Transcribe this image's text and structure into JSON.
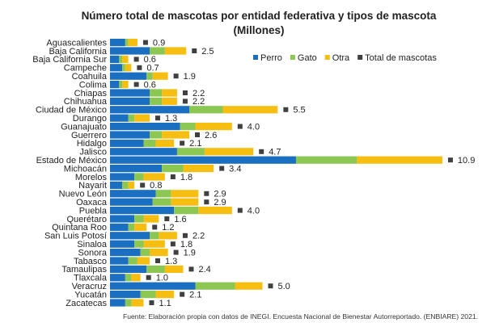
{
  "chart_data": {
    "type": "bar",
    "stacked": true,
    "orientation": "horizontal",
    "title": "Número total de mascotas por entidad federativa y tipos de mascota",
    "subtitle": "(Millones)",
    "source": "Fuente: Elaboración propia con datos de INEGI. Encuesta Nacional de Bienestar Autorreportado. (ENBIARE) 2021.",
    "legend_position": "top-right",
    "grid": false,
    "colors": {
      "Perro": "#1a6fc0",
      "Gato": "#8cc653",
      "Otra": "#f7be12",
      "Total de mascotas": "#404040"
    },
    "categories": [
      "Aguascalientes",
      "Baja California",
      "Baja California Sur",
      "Campeche",
      "Coahuila",
      "Colima",
      "Chiapas",
      "Chihuahua",
      "Ciudad de México",
      "Durango",
      "Guanajuato",
      "Guerrero",
      "Hidalgo",
      "Jalisco",
      "Estado de México",
      "Michoacán",
      "Morelos",
      "Nayarit",
      "Nuevo León",
      "Oaxaca",
      "Puebla",
      "Querétaro",
      "Quintana Roo",
      "San Luis Potosí",
      "Sinaloa",
      "Sonora",
      "Tabasco",
      "Tamaulipas",
      "Tlaxcala",
      "Veracruz",
      "Yucatán",
      "Zacatecas"
    ],
    "series": [
      {
        "name": "Perro",
        "values": [
          0.5,
          1.3,
          0.3,
          0.4,
          1.2,
          0.3,
          1.3,
          1.3,
          2.6,
          0.6,
          2.3,
          1.3,
          1.1,
          2.2,
          6.1,
          1.7,
          0.8,
          0.4,
          1.5,
          1.4,
          2.1,
          0.8,
          0.6,
          1.3,
          0.8,
          1.0,
          0.6,
          1.2,
          0.5,
          2.8,
          1.0,
          0.5
        ]
      },
      {
        "name": "Gato",
        "values": [
          0.1,
          0.5,
          0.1,
          0.1,
          0.2,
          0.1,
          0.4,
          0.4,
          1.1,
          0.2,
          0.5,
          0.4,
          0.4,
          0.9,
          2.0,
          0.7,
          0.3,
          0.2,
          0.5,
          0.6,
          0.8,
          0.3,
          0.2,
          0.3,
          0.3,
          0.3,
          0.3,
          0.6,
          0.2,
          1.3,
          0.5,
          0.2
        ]
      },
      {
        "name": "Otra",
        "values": [
          0.3,
          0.7,
          0.2,
          0.2,
          0.5,
          0.2,
          0.5,
          0.5,
          1.8,
          0.5,
          1.2,
          0.9,
          0.6,
          1.6,
          2.8,
          1.0,
          0.7,
          0.2,
          0.9,
          0.9,
          1.1,
          0.5,
          0.4,
          0.6,
          0.7,
          0.6,
          0.4,
          0.6,
          0.3,
          0.9,
          0.6,
          0.4
        ]
      }
    ],
    "totals": [
      "0.9",
      "2.5",
      "0.6",
      "0.7",
      "1.9",
      "0.6",
      "2.2",
      "2.2",
      "5.5",
      "1.3",
      "4.0",
      "2.6",
      "2.1",
      "4.7",
      "10.9",
      "3.4",
      "1.8",
      "0.8",
      "2.9",
      "2.9",
      "4.0",
      "1.6",
      "1.2",
      "2.2",
      "1.8",
      "1.9",
      "1.3",
      "2.4",
      "1.0",
      "5.0",
      "2.1",
      "1.1"
    ],
    "totals_label": "Total de mascotas"
  }
}
